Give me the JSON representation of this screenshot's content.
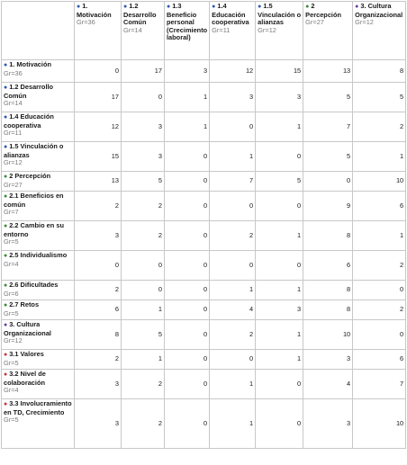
{
  "colors": {
    "blue_dot": "#2f56b5",
    "green_dot": "#3a8a3a",
    "purple_dot": "#6a3fa0",
    "red_dot": "#c8323e"
  },
  "columns": [
    {
      "label": "1. Motivación",
      "gr": "Gr=36",
      "dot": "blue"
    },
    {
      "label": "1.2 Desarrollo Común",
      "gr": "Gr=14",
      "dot": "blue"
    },
    {
      "label": "1.3 Beneficio personal (Crecimiento laboral)",
      "gr": "",
      "dot": "blue"
    },
    {
      "label": "1.4 Educación cooperativa",
      "gr": "Gr=11",
      "dot": "blue"
    },
    {
      "label": "1.5 Vinculación o alianzas",
      "gr": "Gr=12",
      "dot": "blue"
    },
    {
      "label": "2 Percepción",
      "gr": "Gr=27",
      "dot": "green"
    },
    {
      "label": "3. Cultura Organizacional",
      "gr": "Gr=12",
      "dot": "purple"
    }
  ],
  "rows": [
    {
      "label": "1. Motivación",
      "gr": "Gr=36",
      "dot": "blue",
      "values": [
        "0",
        "17",
        "3",
        "12",
        "15",
        "13",
        "8"
      ]
    },
    {
      "label": "1.2 Desarrollo Común",
      "gr": "Gr=14",
      "dot": "blue",
      "values": [
        "17",
        "0",
        "1",
        "3",
        "3",
        "5",
        "5"
      ]
    },
    {
      "label": "1.4 Educación cooperativa",
      "gr": "Gr=11",
      "dot": "blue",
      "values": [
        "12",
        "3",
        "1",
        "0",
        "1",
        "7",
        "2"
      ]
    },
    {
      "label": "1.5 Vinculación o alianzas",
      "gr": "Gr=12",
      "dot": "blue",
      "values": [
        "15",
        "3",
        "0",
        "1",
        "0",
        "5",
        "1"
      ]
    },
    {
      "label": "2 Percepción",
      "gr": "Gr=27",
      "dot": "green",
      "values": [
        "13",
        "5",
        "0",
        "7",
        "5",
        "0",
        "10"
      ]
    },
    {
      "label": "2.1 Beneficios en común",
      "gr": "Gr=7",
      "dot": "green",
      "values": [
        "2",
        "2",
        "0",
        "0",
        "0",
        "9",
        "6"
      ]
    },
    {
      "label": "2.2 Cambio en su entorno",
      "gr": "Gr=5",
      "dot": "green",
      "values": [
        "3",
        "2",
        "0",
        "2",
        "1",
        "8",
        "1"
      ]
    },
    {
      "label": "2.5 Individualismo",
      "gr": "Gr=4",
      "dot": "green",
      "values": [
        "0",
        "0",
        "0",
        "0",
        "0",
        "6",
        "2"
      ]
    },
    {
      "label": "2.6 Dificultades",
      "gr": "Gr=6",
      "dot": "green",
      "values": [
        "2",
        "0",
        "0",
        "1",
        "1",
        "8",
        "0"
      ]
    },
    {
      "label": "2.7 Retos",
      "gr": "Gr=5",
      "dot": "green",
      "values": [
        "6",
        "1",
        "0",
        "4",
        "3",
        "8",
        "2"
      ]
    },
    {
      "label": "3. Cultura Organizacional",
      "gr": "Gr=12",
      "dot": "purple",
      "values": [
        "8",
        "5",
        "0",
        "2",
        "1",
        "10",
        "0"
      ]
    },
    {
      "label": "3.1 Valores",
      "gr": "Gr=5",
      "dot": "red",
      "values": [
        "2",
        "1",
        "0",
        "0",
        "1",
        "3",
        "6"
      ]
    },
    {
      "label": "3.2 Nivel de colaboración",
      "gr": "Gr=4",
      "dot": "red",
      "values": [
        "3",
        "2",
        "0",
        "1",
        "0",
        "4",
        "7"
      ]
    },
    {
      "label": "3.3 Involucramiento en TD, Crecimiento",
      "gr": "Gr=5",
      "dot": "red",
      "values": [
        "3",
        "2",
        "0",
        "1",
        "0",
        "3",
        "10"
      ]
    }
  ]
}
